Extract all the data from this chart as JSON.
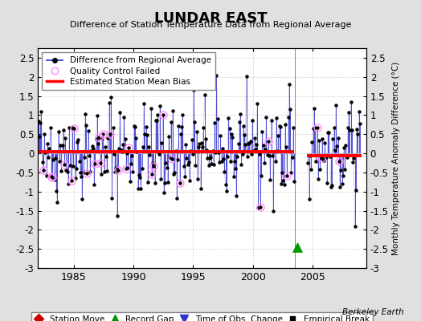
{
  "title": "LUNDAR EAST",
  "subtitle": "Difference of Station Temperature Data from Regional Average",
  "ylabel_right": "Monthly Temperature Anomaly Difference (°C)",
  "credit": "Berkeley Earth",
  "xlim": [
    1982.0,
    2009.5
  ],
  "ylim": [
    -3.0,
    2.75
  ],
  "yticks": [
    -3,
    -2.5,
    -2,
    -1.5,
    -1,
    -0.5,
    0,
    0.5,
    1,
    1.5,
    2,
    2.5
  ],
  "xticks": [
    1985,
    1990,
    1995,
    2000,
    2005
  ],
  "bias1_xstart": 1982.0,
  "bias1_xend": 2003.45,
  "bias1_y": 0.05,
  "bias2_xstart": 2004.5,
  "bias2_xend": 2009.1,
  "bias2_y": -0.07,
  "record_gap_x": 2003.7,
  "record_gap_y": -2.45,
  "bg_color": "#e0e0e0",
  "plot_bg_color": "#ffffff",
  "line_color": "#3333cc",
  "bias_color": "#ff0000",
  "qc_color": "#ff88ff",
  "dot_color": "#000000"
}
